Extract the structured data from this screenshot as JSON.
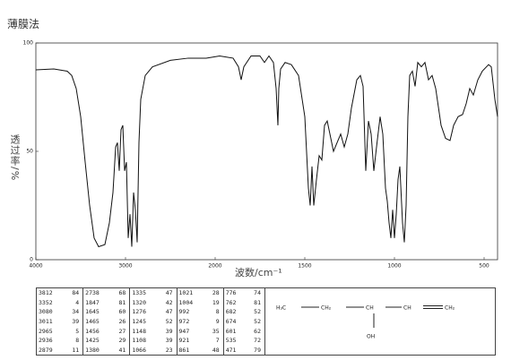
{
  "chart_data": {
    "type": "line",
    "title": "薄膜法",
    "x_label": "波数/cm⁻¹",
    "y_label": "透过率/%",
    "xlim": [
      4000,
      425
    ],
    "xticks": [
      4000,
      3000,
      2000,
      1500,
      1000,
      500
    ],
    "ylim": [
      0,
      100
    ],
    "yticks": [
      0,
      50,
      100
    ],
    "grid": false,
    "color": "#111",
    "x": [
      4000,
      3800,
      3650,
      3600,
      3550,
      3500,
      3450,
      3400,
      3350,
      3300,
      3230,
      3180,
      3140,
      3110,
      3090,
      3070,
      3050,
      3030,
      3010,
      2990,
      2970,
      2950,
      2930,
      2910,
      2890,
      2870,
      2850,
      2830,
      2780,
      2700,
      2500,
      2300,
      2100,
      1975,
      1900,
      1870,
      1855,
      1840,
      1800,
      1750,
      1725,
      1700,
      1675,
      1660,
      1650,
      1645,
      1635,
      1610,
      1575,
      1535,
      1500,
      1480,
      1470,
      1460,
      1450,
      1435,
      1420,
      1405,
      1390,
      1375,
      1360,
      1340,
      1320,
      1300,
      1280,
      1260,
      1240,
      1210,
      1190,
      1175,
      1160,
      1145,
      1130,
      1115,
      1100,
      1080,
      1065,
      1050,
      1040,
      1030,
      1020,
      1010,
      1000,
      990,
      980,
      970,
      955,
      945,
      935,
      925,
      915,
      900,
      885,
      870,
      850,
      830,
      810,
      790,
      770,
      740,
      715,
      690,
      670,
      645,
      620,
      600,
      580,
      560,
      535,
      510,
      475,
      460,
      440,
      425
    ],
    "values": [
      87.6,
      88,
      87,
      85,
      79,
      66,
      45,
      25,
      10,
      6,
      7,
      17,
      31,
      52,
      54,
      41,
      60,
      62,
      41,
      45,
      10,
      21,
      6,
      31,
      23,
      8,
      54,
      74,
      85,
      89,
      92,
      93,
      93,
      94,
      93,
      89,
      83,
      89,
      94,
      94,
      91,
      94,
      91,
      79,
      62,
      79,
      88,
      91,
      90,
      85,
      66,
      33,
      25,
      43,
      25,
      37,
      48,
      46,
      62,
      64,
      58,
      50,
      54,
      58,
      52,
      58,
      70,
      83,
      85,
      80,
      41,
      64,
      58,
      41,
      52,
      66,
      58,
      33,
      27,
      17,
      10,
      23,
      10,
      21,
      37,
      43,
      17,
      8,
      25,
      66,
      85,
      87,
      80,
      91,
      89,
      91,
      83,
      85,
      79,
      62,
      56,
      55,
      62,
      66,
      67,
      72,
      79,
      76,
      83,
      87,
      90,
      89,
      74,
      66
    ]
  },
  "peak_table": {
    "rows": [
      [
        "3812",
        "84",
        "2738",
        "68",
        "1335",
        "47",
        "1021",
        "28",
        "776",
        "74"
      ],
      [
        "3352",
        "4",
        "1847",
        "81",
        "1320",
        "42",
        "1004",
        "19",
        "762",
        "81"
      ],
      [
        "3080",
        "34",
        "1645",
        "60",
        "1276",
        "47",
        "992",
        "8",
        "682",
        "52"
      ],
      [
        "3011",
        "39",
        "1465",
        "26",
        "1245",
        "52",
        "972",
        "9",
        "674",
        "52"
      ],
      [
        "2965",
        "5",
        "1456",
        "27",
        "1148",
        "39",
        "947",
        "35",
        "601",
        "62"
      ],
      [
        "2936",
        "8",
        "1425",
        "29",
        "1108",
        "39",
        "921",
        "7",
        "535",
        "72"
      ],
      [
        "2879",
        "11",
        "1380",
        "41",
        "1066",
        "23",
        "861",
        "48",
        "471",
        "79"
      ]
    ]
  },
  "structure": {
    "groups": [
      "H₃C",
      "CH₂",
      "CH",
      "CH",
      "CH₂"
    ],
    "substituent": "OH"
  }
}
